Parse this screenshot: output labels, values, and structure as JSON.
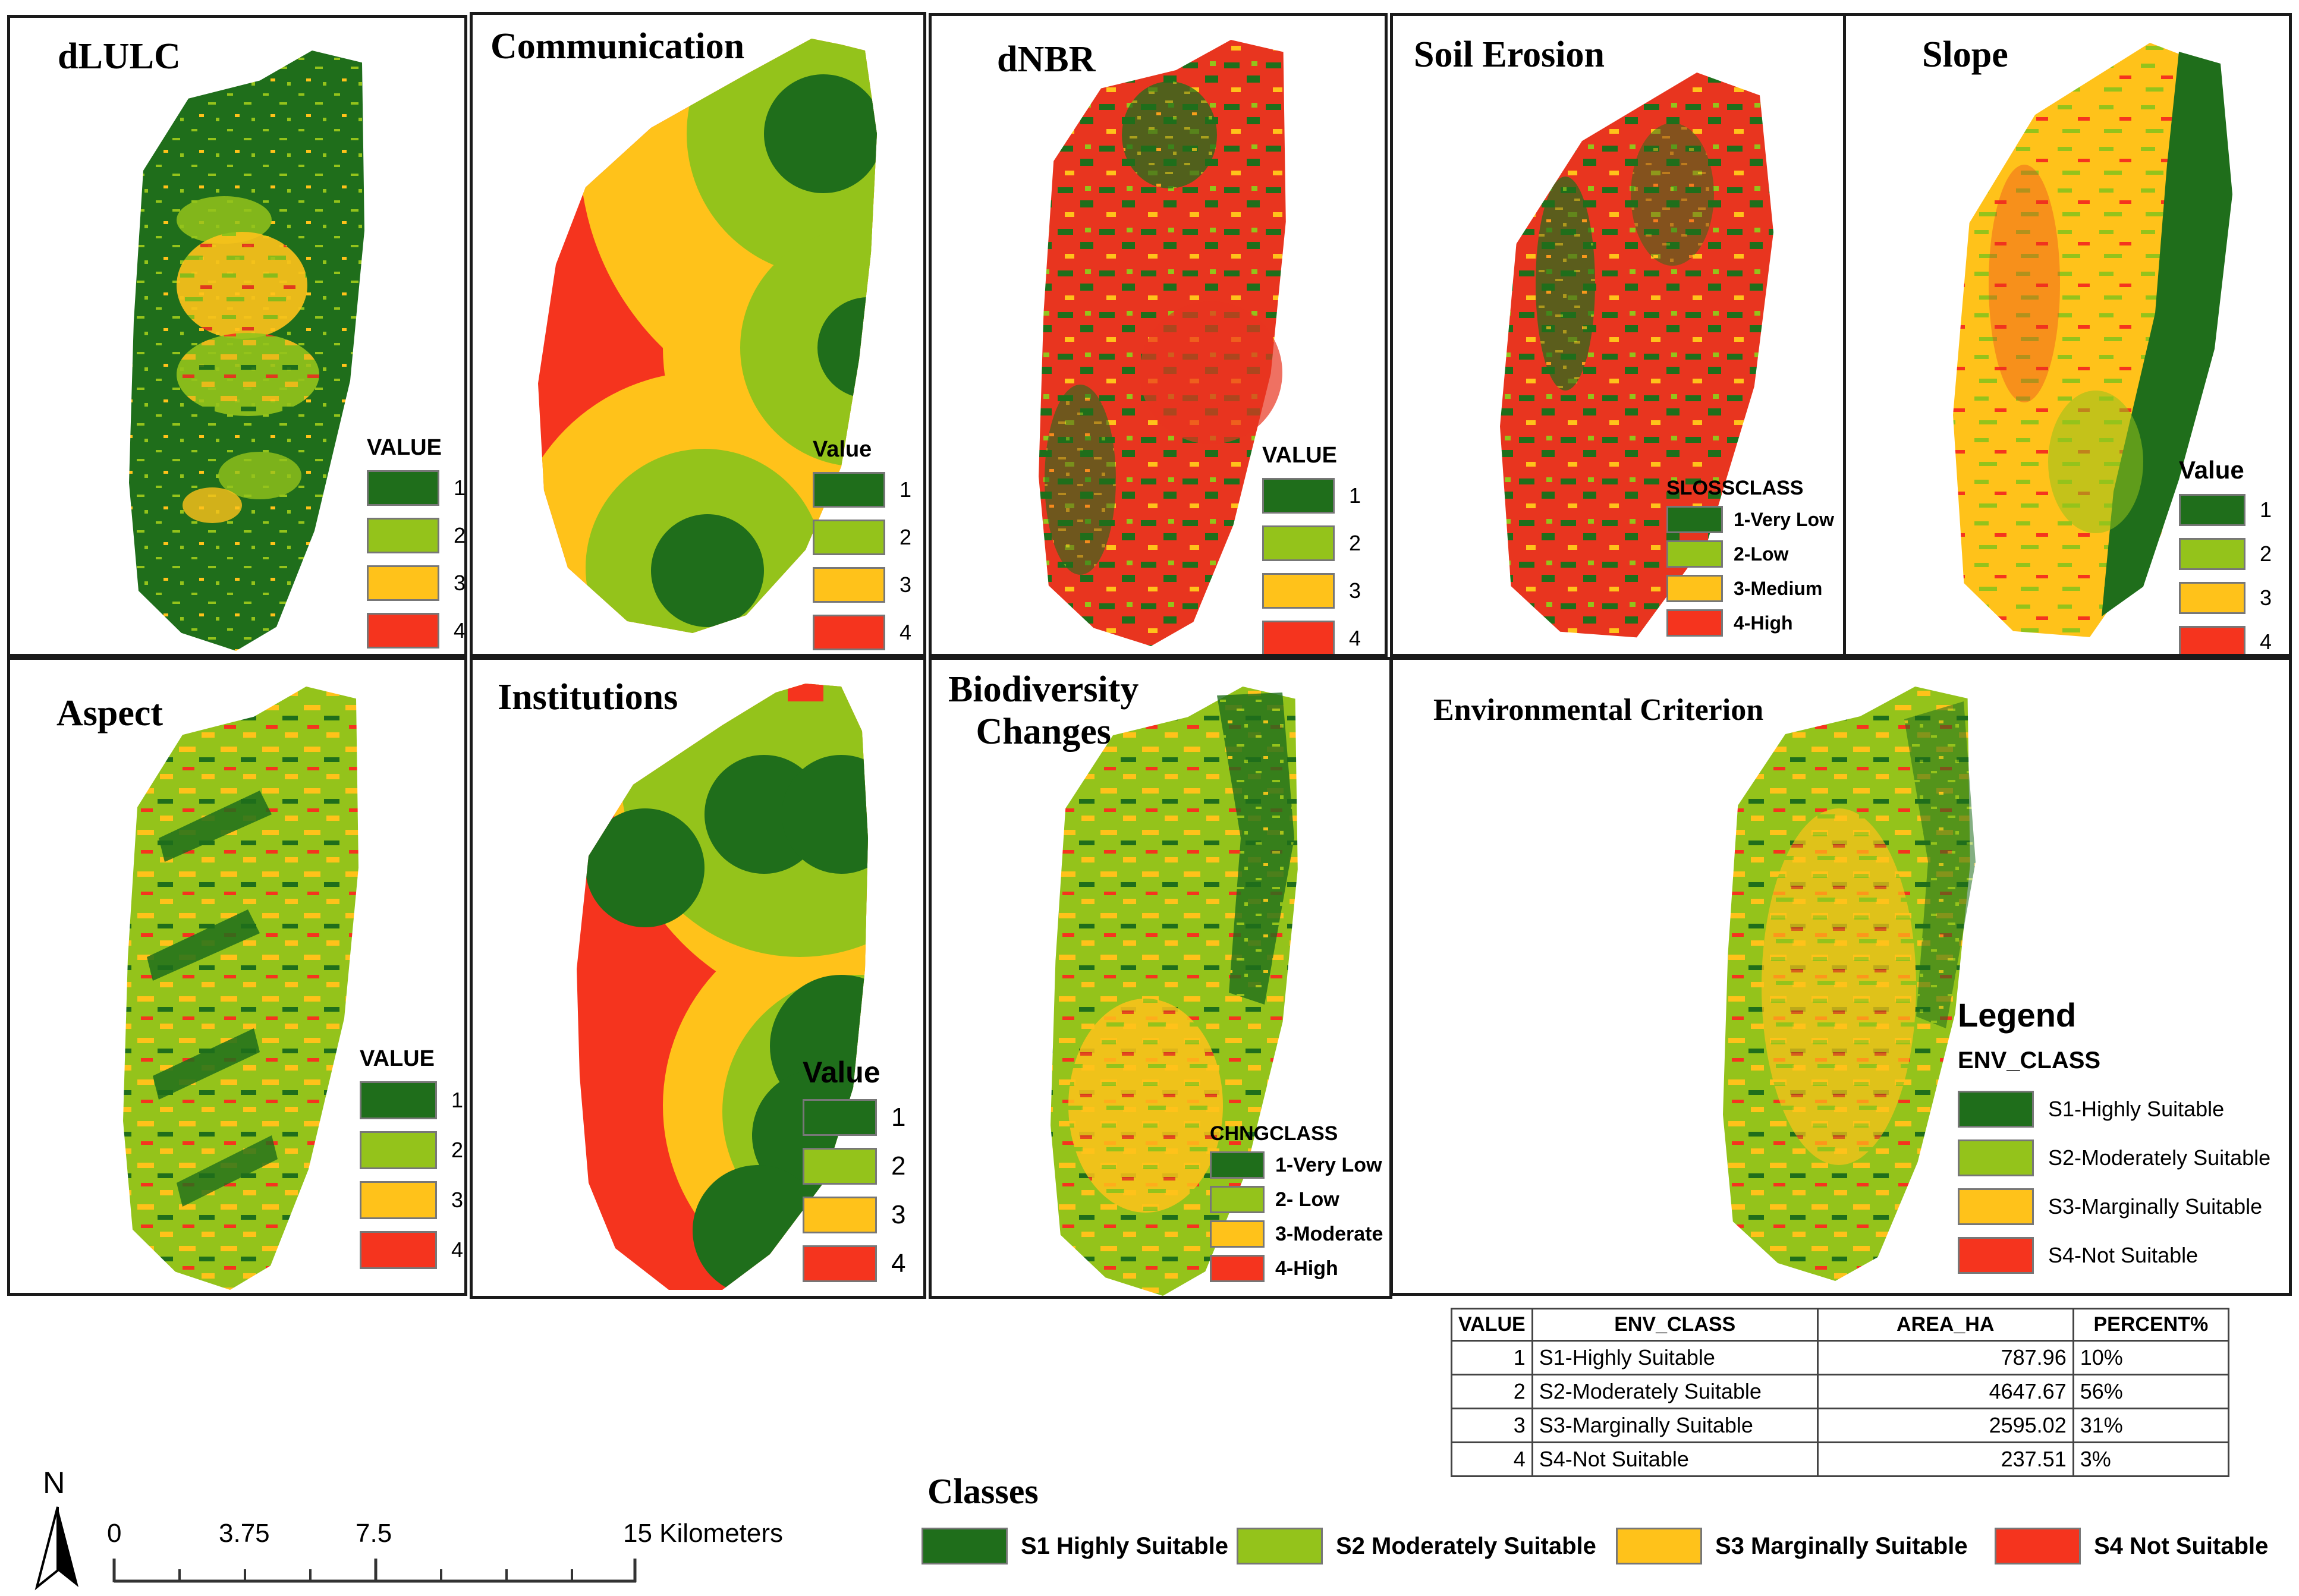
{
  "colors": {
    "c1": "#1f6e1b",
    "c2": "#94c31b",
    "c3": "#ffc21a",
    "c4": "#f5341e"
  },
  "panels": [
    {
      "id": "dlulc",
      "title": "dLULC",
      "legend_title": "VALUE",
      "items": [
        "1",
        "2",
        "3",
        "4"
      ]
    },
    {
      "id": "communication",
      "title": "Communication",
      "legend_title": "Value",
      "items": [
        "1",
        "2",
        "3",
        "4"
      ]
    },
    {
      "id": "dnbr",
      "title": "dNBR",
      "legend_title": "VALUE",
      "items": [
        "1",
        "2",
        "3",
        "4"
      ]
    },
    {
      "id": "soil-erosion",
      "title": "Soil Erosion",
      "legend_title": "SLOSSCLASS",
      "items": [
        "1-Very Low",
        "2-Low",
        "3-Medium",
        "4-High"
      ]
    },
    {
      "id": "slope",
      "title": "Slope",
      "legend_title": "Value",
      "items": [
        "1",
        "2",
        "3",
        "4"
      ]
    },
    {
      "id": "aspect",
      "title": "Aspect",
      "legend_title": "VALUE",
      "items": [
        "1",
        "2",
        "3",
        "4"
      ]
    },
    {
      "id": "institutions",
      "title": "Institutions",
      "legend_title": "Value",
      "items": [
        "1",
        "2",
        "3",
        "4"
      ]
    },
    {
      "id": "biodiversity",
      "title": "Biodiversity\nChanges",
      "title_line1": "Biodiversity",
      "title_line2": "Changes",
      "legend_title": "CHNGCLASS",
      "items": [
        "1-Very Low",
        "2- Low",
        "3-Moderate",
        "4-High"
      ]
    },
    {
      "id": "environmental",
      "title": "Environmental Criterion",
      "legend_heading": "Legend",
      "legend_title": "ENV_CLASS",
      "items": [
        "S1-Highly Suitable",
        "S2-Moderately Suitable",
        "S3-Marginally Suitable",
        "S4-Not Suitable"
      ]
    }
  ],
  "table": {
    "headers": [
      "VALUE",
      "ENV_CLASS",
      "AREA_HA",
      "PERCENT%"
    ],
    "rows": [
      [
        "1",
        "S1-Highly Suitable",
        "787.96",
        "10%"
      ],
      [
        "2",
        "S2-Moderately Suitable",
        "4647.67",
        "56%"
      ],
      [
        "3",
        "S3-Marginally Suitable",
        "2595.02",
        "31%"
      ],
      [
        "4",
        "S4-Not Suitable",
        "237.51",
        "3%"
      ]
    ]
  },
  "classes": {
    "title": "Classes",
    "items": [
      "S1 Highly Suitable",
      "S2 Moderately Suitable",
      "S3 Marginally Suitable",
      "S4 Not Suitable"
    ]
  },
  "scalebar": {
    "north": "N",
    "ticks": [
      "0",
      "3.75",
      "7.5",
      "15 Kilometers"
    ]
  }
}
